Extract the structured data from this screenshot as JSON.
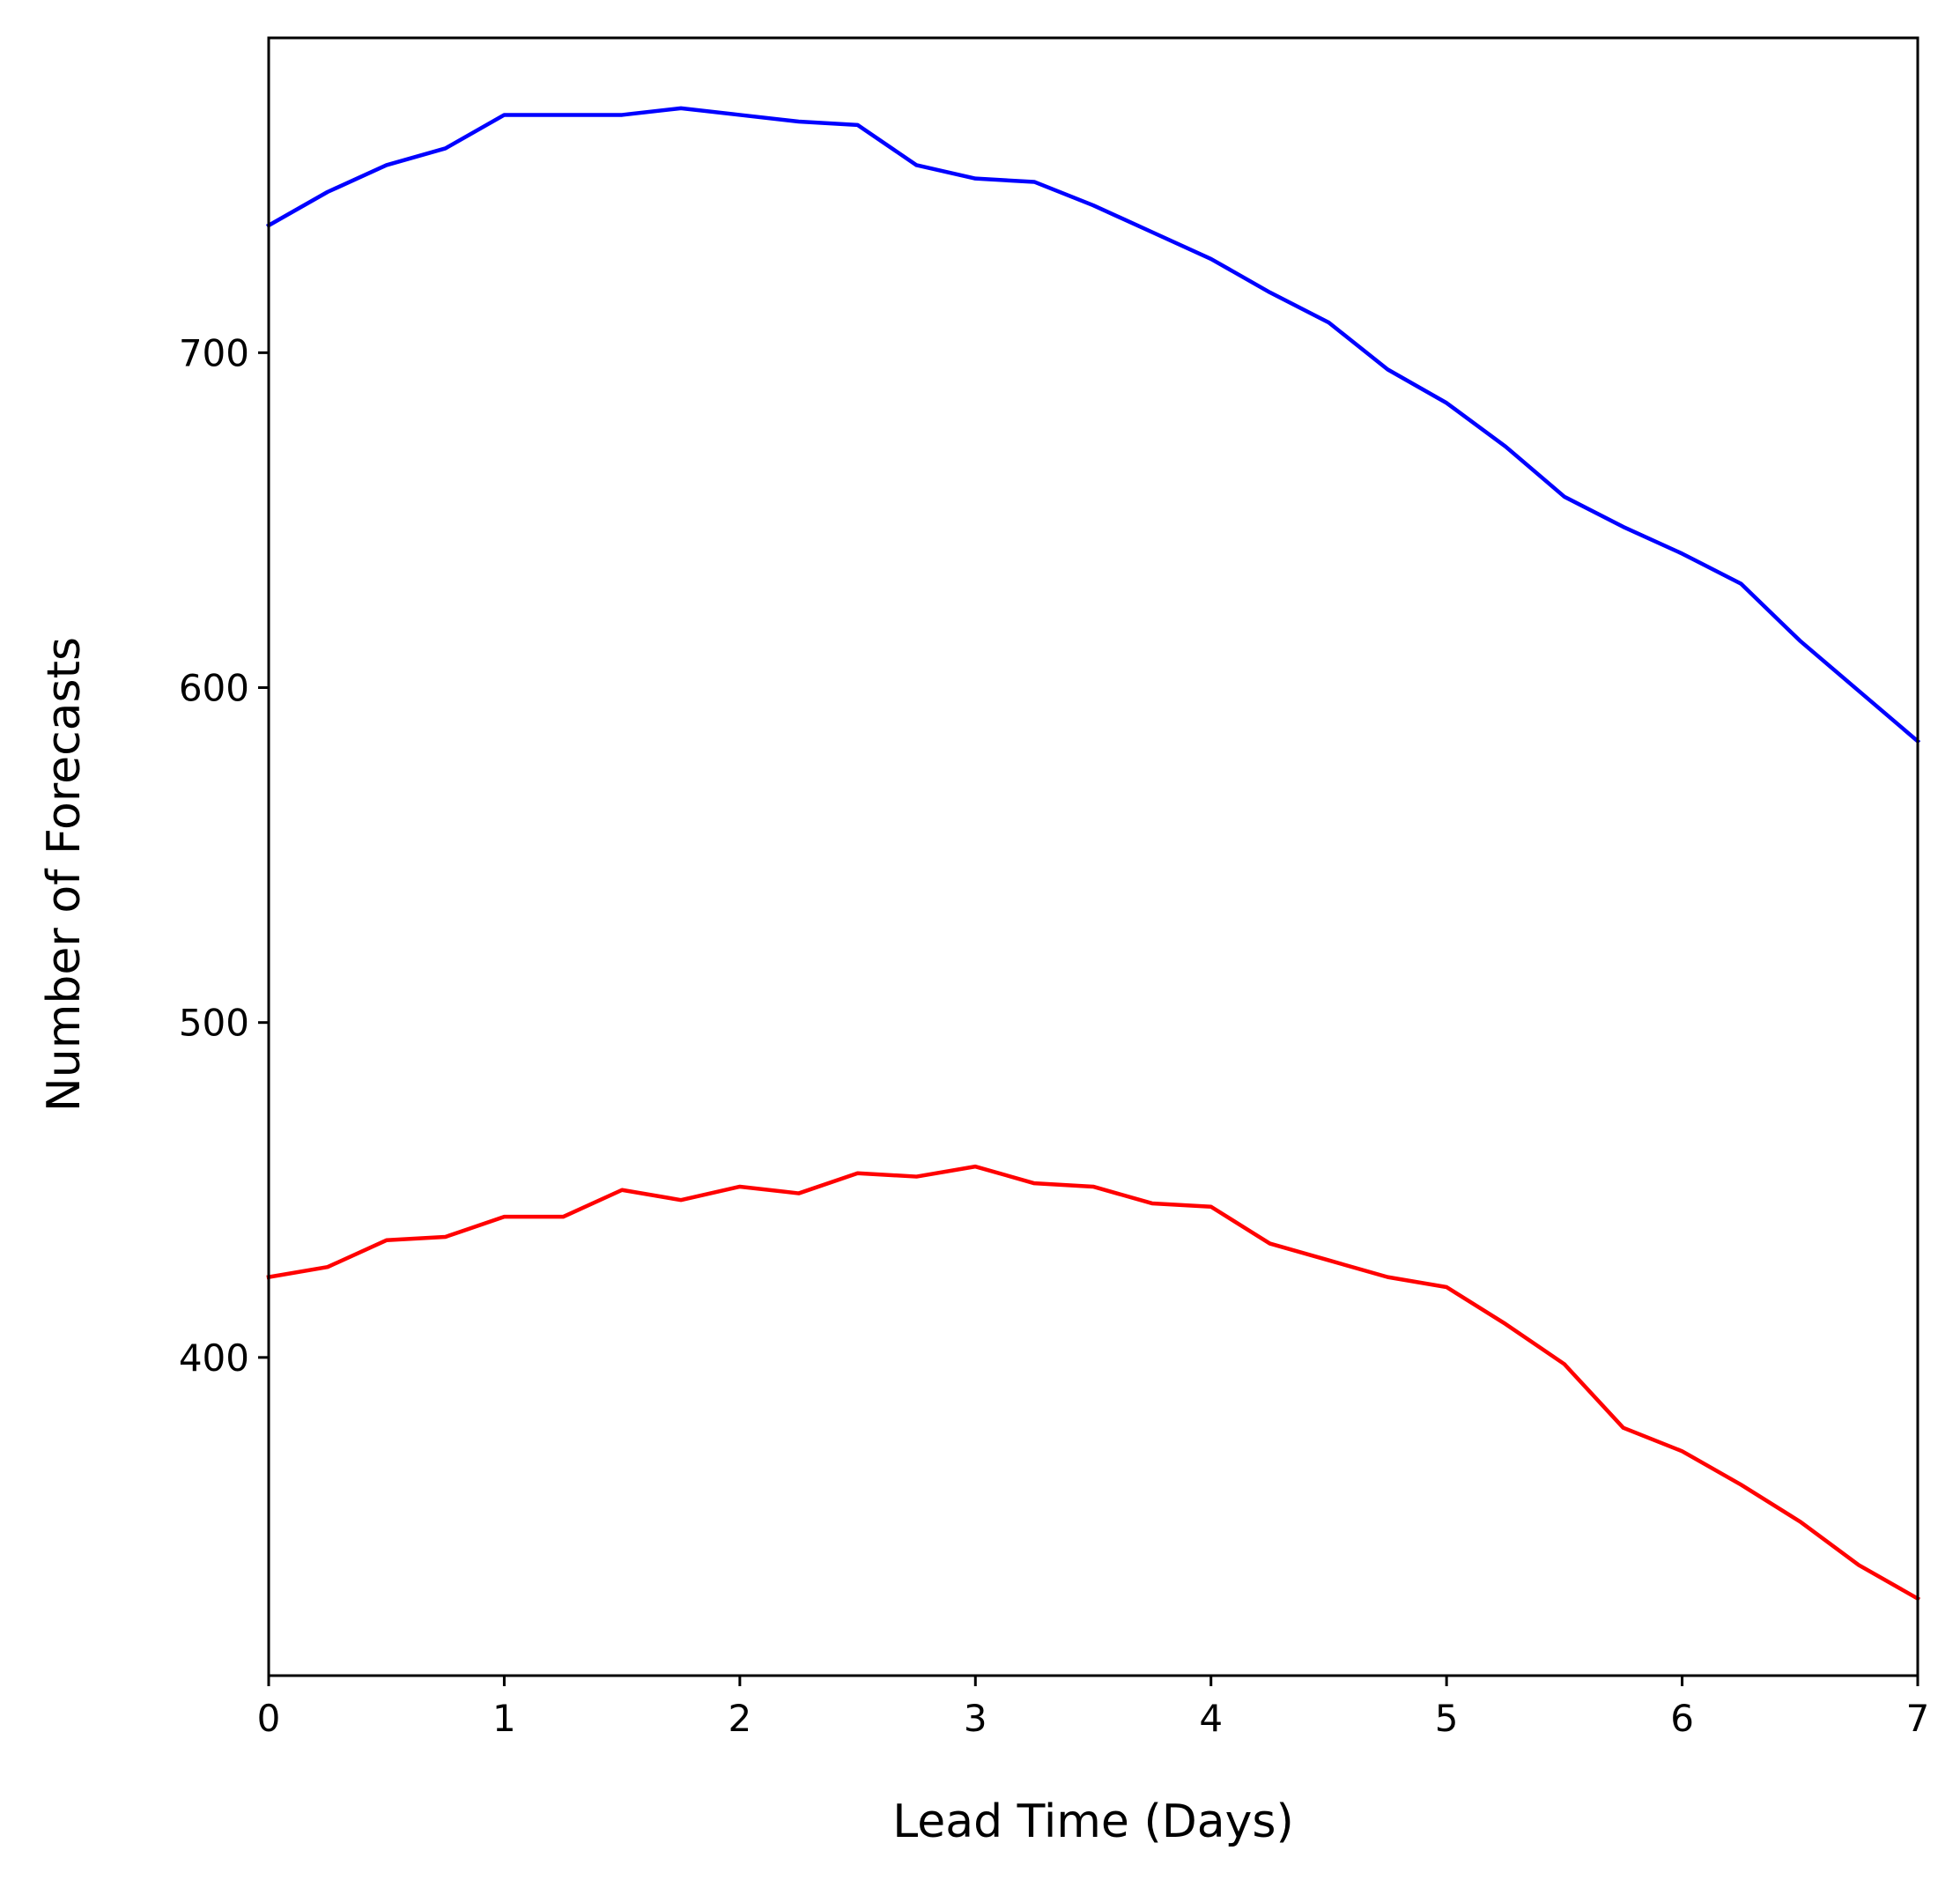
{
  "chart_data": {
    "type": "line",
    "title": "",
    "xlabel": "Lead Time (Days)",
    "ylabel": "Number of Forecasts",
    "xlim": [
      0,
      7
    ],
    "ylim": [
      305,
      794
    ],
    "xticks": [
      0,
      1,
      2,
      3,
      4,
      5,
      6,
      7
    ],
    "yticks": [
      400,
      500,
      600,
      700
    ],
    "grid": false,
    "legend": "none",
    "x": [
      0,
      0.25,
      0.5,
      0.75,
      1,
      1.25,
      1.5,
      1.75,
      2,
      2.25,
      2.5,
      2.75,
      3,
      3.25,
      3.5,
      3.75,
      4,
      4.25,
      4.5,
      4.75,
      5,
      5.25,
      5.5,
      5.75,
      6,
      6.25,
      6.5,
      6.75,
      7
    ],
    "series": [
      {
        "color": "#0000ff",
        "values": [
          738,
          748,
          756,
          761,
          771,
          771,
          771,
          773,
          771,
          769,
          768,
          756,
          752,
          751,
          744,
          736,
          728,
          718,
          709,
          695,
          685,
          672,
          657,
          648,
          640,
          631,
          614,
          599,
          584
        ]
      },
      {
        "color": "#ff0000",
        "values": [
          424,
          427,
          435,
          436,
          442,
          442,
          450,
          447,
          451,
          449,
          455,
          454,
          457,
          452,
          451,
          446,
          445,
          434,
          429,
          424,
          421,
          410,
          398,
          379,
          372,
          362,
          351,
          338,
          328
        ]
      }
    ]
  }
}
